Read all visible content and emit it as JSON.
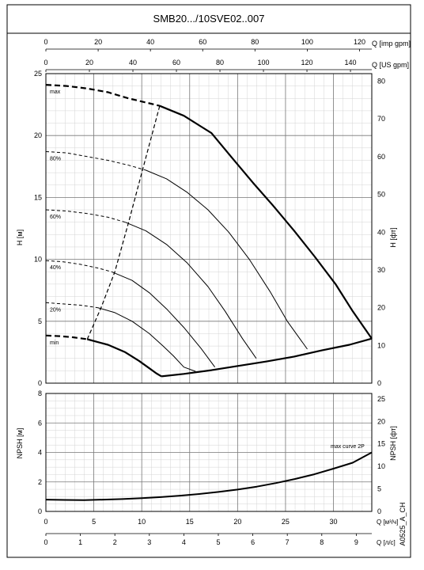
{
  "title": "SMB20.../10SVE02..007",
  "side_label": "A0525_A_CH",
  "chart_data": [
    {
      "type": "line",
      "title": "",
      "ylabel": "H [м]",
      "ylabel_right": "H [фт]",
      "xlim": [
        0,
        9.45
      ],
      "ylim": [
        0,
        25
      ],
      "yticks": [
        0,
        5,
        10,
        15,
        20,
        25
      ],
      "ylim_right": [
        0,
        82
      ],
      "yticks_right": [
        0,
        10,
        20,
        30,
        40,
        50,
        60,
        70,
        80
      ],
      "grid": true,
      "top_axes": [
        {
          "label": "Q [imp gpm]",
          "ticks": [
            0,
            20,
            40,
            60,
            80,
            100,
            120
          ],
          "max": 124.7
        },
        {
          "label": "Q [US gpm]",
          "ticks": [
            0,
            20,
            40,
            60,
            80,
            100,
            120,
            140
          ],
          "max": 149.8
        }
      ],
      "series": [
        {
          "name": "max",
          "style": "bold",
          "dashed_x": [
            0,
            0.6,
            1.2,
            1.8,
            2.4,
            3.0,
            3.3
          ],
          "dashed_y": [
            24.1,
            24.0,
            23.8,
            23.5,
            23.0,
            22.6,
            22.4
          ],
          "x": [
            3.3,
            4.0,
            4.8,
            5.4,
            6.0,
            6.6,
            7.2,
            7.8,
            8.4,
            8.9,
            9.45
          ],
          "y": [
            22.4,
            21.6,
            20.2,
            18.2,
            16.2,
            14.3,
            12.3,
            10.2,
            8.0,
            5.8,
            3.6
          ]
        },
        {
          "name": "80%",
          "style": "thin",
          "dashed_x": [
            0,
            0.6,
            1.2,
            1.8,
            2.4,
            2.9
          ],
          "dashed_y": [
            18.7,
            18.6,
            18.3,
            18.0,
            17.6,
            17.2
          ],
          "x": [
            2.9,
            3.5,
            4.1,
            4.7,
            5.3,
            5.9,
            6.5,
            7.0,
            7.58
          ],
          "y": [
            17.2,
            16.5,
            15.4,
            14.0,
            12.2,
            10.0,
            7.4,
            5.0,
            2.75
          ]
        },
        {
          "name": "60%",
          "style": "thin",
          "dashed_x": [
            0,
            0.6,
            1.2,
            1.8,
            2.3
          ],
          "dashed_y": [
            14.0,
            13.9,
            13.7,
            13.4,
            13.0
          ],
          "x": [
            2.3,
            2.9,
            3.5,
            4.1,
            4.7,
            5.2,
            5.7,
            6.1
          ],
          "y": [
            13.0,
            12.3,
            11.2,
            9.7,
            7.8,
            5.8,
            3.6,
            2.0
          ]
        },
        {
          "name": "40%",
          "style": "thin",
          "dashed_x": [
            0,
            0.5,
            1.0,
            1.5,
            1.9
          ],
          "dashed_y": [
            9.9,
            9.8,
            9.6,
            9.3,
            9.0
          ],
          "x": [
            1.9,
            2.5,
            3.0,
            3.5,
            4.0,
            4.5,
            4.9
          ],
          "y": [
            9.0,
            8.3,
            7.3,
            6.0,
            4.5,
            2.8,
            1.3
          ]
        },
        {
          "name": "20%",
          "style": "thin",
          "dashed_x": [
            0,
            0.5,
            1.0,
            1.5
          ],
          "dashed_y": [
            6.5,
            6.4,
            6.3,
            6.1
          ],
          "x": [
            1.5,
            2.0,
            2.5,
            3.0,
            3.4,
            3.7,
            4.0,
            4.34
          ],
          "y": [
            6.1,
            5.7,
            5.0,
            4.0,
            3.0,
            2.2,
            1.3,
            0.95
          ]
        },
        {
          "name": "min",
          "style": "bold",
          "dashed_x": [
            0,
            0.4,
            0.8,
            1.2
          ],
          "dashed_y": [
            3.85,
            3.8,
            3.7,
            3.55
          ],
          "x": [
            1.2,
            1.8,
            2.3,
            2.7,
            3.0,
            3.2,
            3.35
          ],
          "y": [
            3.55,
            3.1,
            2.5,
            1.8,
            1.2,
            0.8,
            0.55
          ]
        },
        {
          "name": "",
          "style": "bold",
          "x": [
            3.35,
            4.0,
            4.8,
            5.6,
            6.4,
            7.2,
            8.0,
            8.8,
            9.45
          ],
          "y": [
            0.55,
            0.75,
            1.05,
            1.4,
            1.75,
            2.15,
            2.65,
            3.1,
            3.6
          ]
        },
        {
          "name": "",
          "style": "dashed",
          "x": [
            1.2,
            1.6,
            2.0,
            2.4,
            2.8,
            3.3
          ],
          "y": [
            3.55,
            6.1,
            9.0,
            13.0,
            17.2,
            22.4
          ]
        }
      ]
    },
    {
      "type": "line",
      "title": "",
      "xlabel": "Q [м³/ч]",
      "xlabel2": "Q [л/с]",
      "ylabel": "NPSH [м]",
      "ylabel_right": "NPSH [фт]",
      "xlim": [
        0,
        34
      ],
      "xticks": [
        0,
        5,
        10,
        15,
        20,
        25,
        30
      ],
      "xlim2": [
        0,
        9.45
      ],
      "xticks2": [
        0,
        1,
        2,
        3,
        4,
        5,
        6,
        7,
        8,
        9
      ],
      "ylim": [
        0,
        8
      ],
      "yticks": [
        0,
        2,
        4,
        6,
        8
      ],
      "ylim_right": [
        0,
        26.2
      ],
      "yticks_right": [
        0,
        5,
        10,
        15,
        20,
        25
      ],
      "grid": true,
      "series": [
        {
          "name": "max curve 2P",
          "style": "bold",
          "x": [
            0,
            2,
            4,
            6,
            8,
            10,
            12,
            14,
            16,
            18,
            20,
            22,
            24,
            26,
            28,
            30,
            32,
            34
          ],
          "y": [
            0.8,
            0.78,
            0.77,
            0.8,
            0.84,
            0.9,
            0.97,
            1.07,
            1.18,
            1.32,
            1.48,
            1.68,
            1.92,
            2.2,
            2.52,
            2.9,
            3.3,
            4.0
          ]
        }
      ]
    }
  ],
  "curve_labels": [
    "max",
    "80%",
    "60%",
    "40%",
    "20%",
    "min"
  ]
}
